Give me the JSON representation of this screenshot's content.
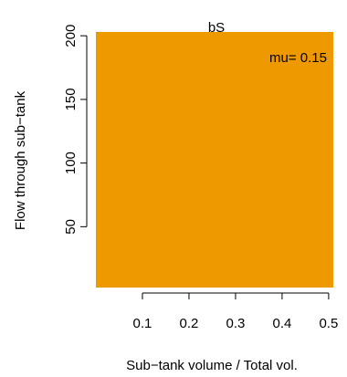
{
  "chart_data": {
    "type": "heatmap",
    "title": "bS",
    "annotation": "mu= 0.15",
    "xlabel": "Sub−tank volume / Total vol.",
    "ylabel": "Flow through sub−tank",
    "xlim": [
      0.0,
      0.51
    ],
    "ylim": [
      2.2,
      203
    ],
    "x_ticks": [
      0.1,
      0.2,
      0.3,
      0.4,
      0.5
    ],
    "x_tick_labels": [
      "0.1",
      "0.2",
      "0.3",
      "0.4",
      "0.5"
    ],
    "y_ticks": [
      50,
      100,
      150,
      200
    ],
    "y_tick_labels": [
      "50",
      "100",
      "150",
      "200"
    ],
    "fill_color": "#EE9900",
    "grid": false,
    "axis_color": "#000000"
  }
}
